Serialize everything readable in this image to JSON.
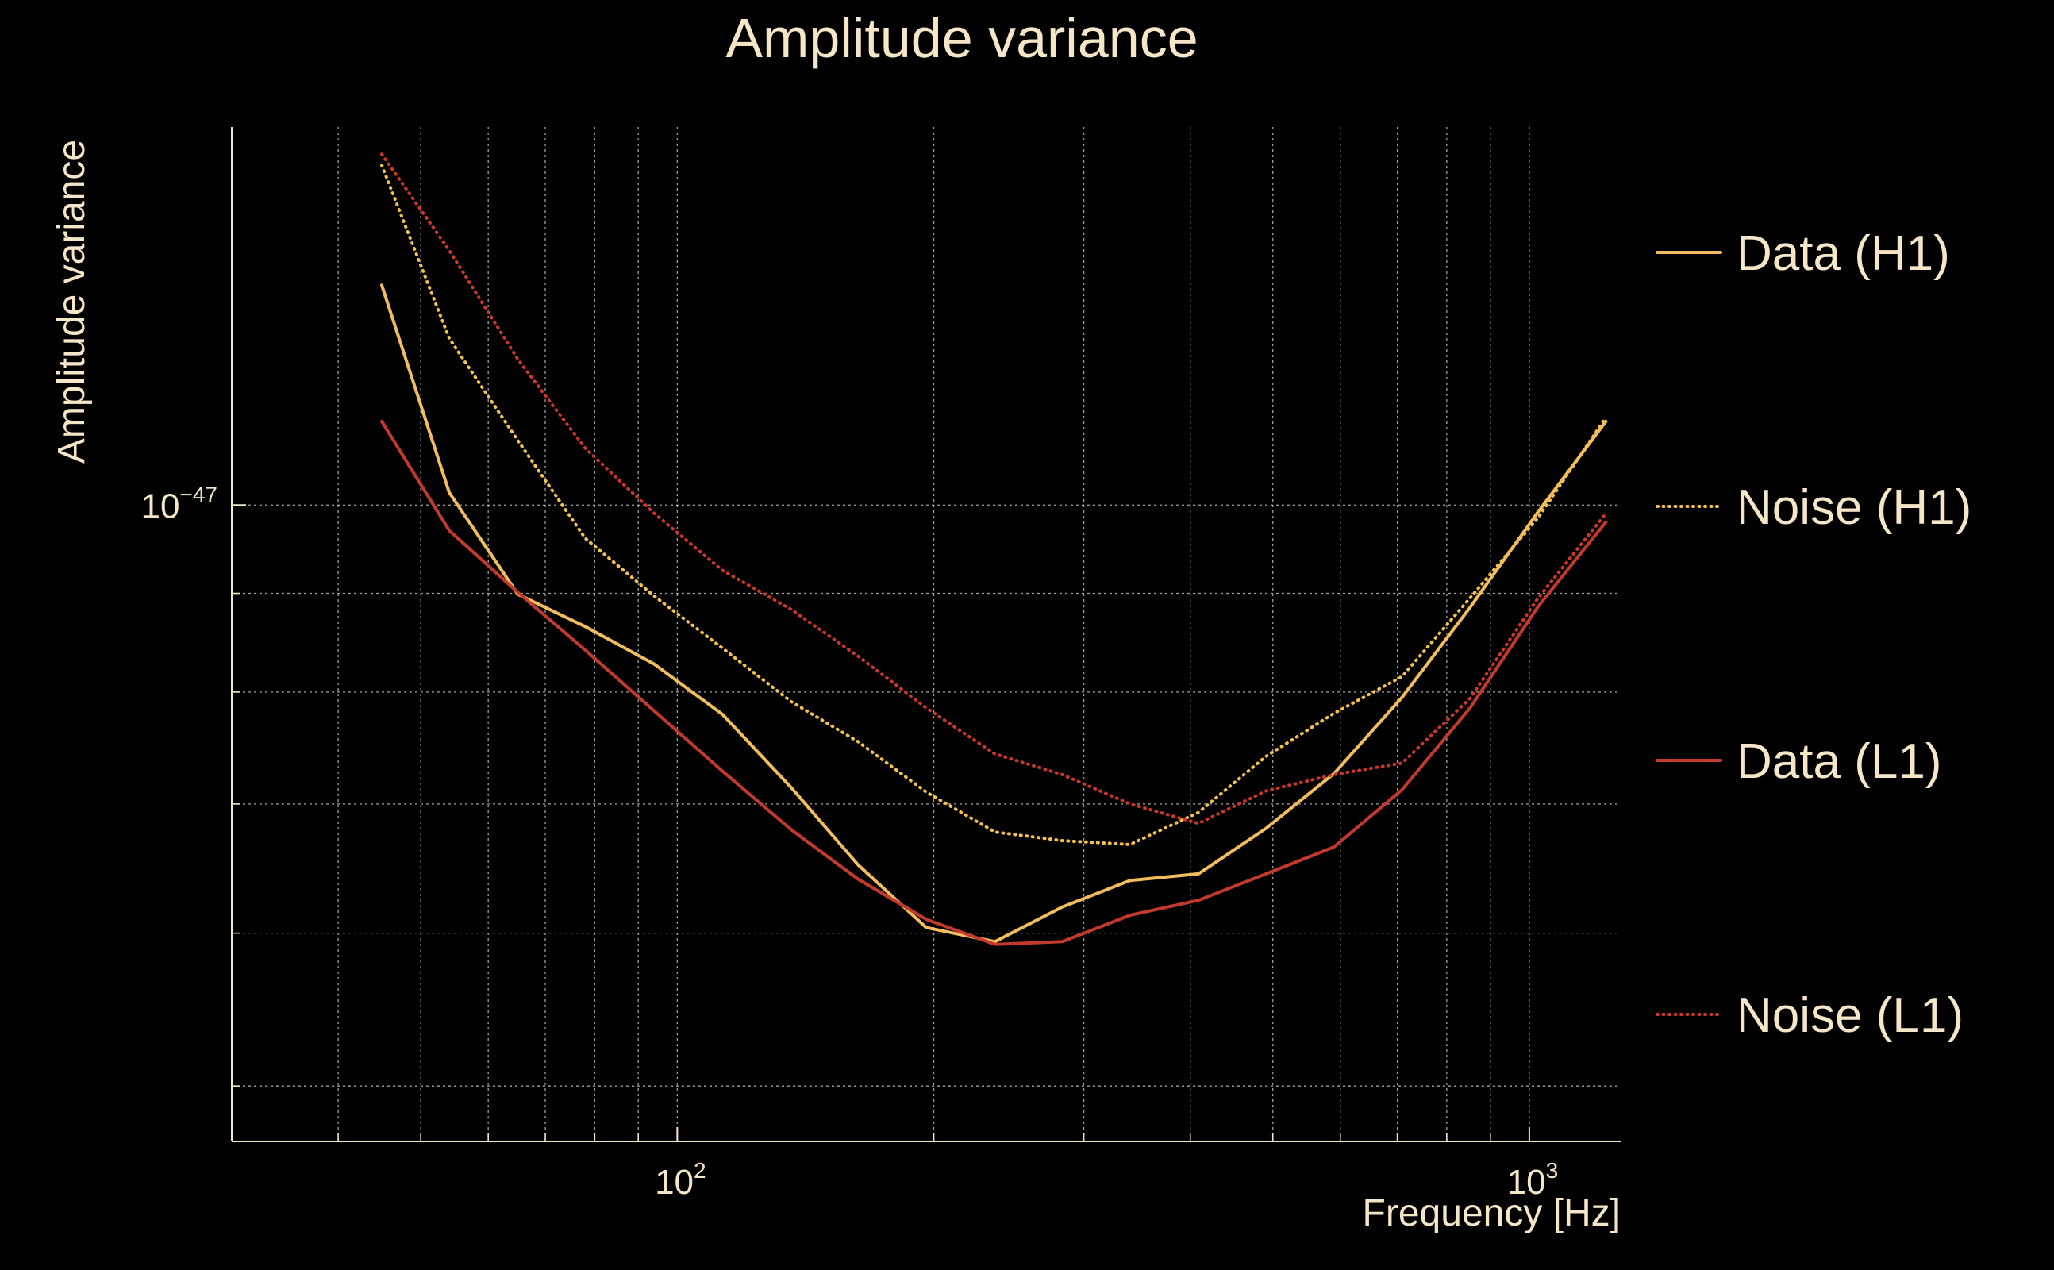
{
  "colors": {
    "background": "#000000",
    "text": "#f5e6c8",
    "grid": "#d8d8d8",
    "axis": "#f5e6c8",
    "data_h1": "#f2bd5c",
    "noise_h1": "#f2c14e",
    "data_l1": "#c23a2c",
    "noise_l1": "#c9382b"
  },
  "chart_data": {
    "type": "line",
    "title": "Amplitude variance",
    "xlabel": "Frequency [Hz]",
    "ylabel": "Amplitude variance",
    "xscale": "log",
    "yscale": "log",
    "xlim": [
      30,
      1280
    ],
    "ylim": [
      4.68e-48,
      1.57e-47
    ],
    "x_ticks": [
      {
        "value": 100,
        "base": "10",
        "exp": "2"
      },
      {
        "value": 1000,
        "base": "10",
        "exp": "3"
      }
    ],
    "y_ticks": [
      {
        "value": 1e-47,
        "base": "10",
        "exp": "−47"
      }
    ],
    "x_minor_ticks": [
      40,
      50,
      60,
      70,
      80,
      90,
      200,
      300,
      400,
      500,
      600,
      700,
      800,
      900
    ],
    "y_minor_ticks": [
      5e-48,
      6e-48,
      7e-48,
      8e-48,
      9e-48,
      2e-47
    ],
    "grid": true,
    "legend_position": "right",
    "x": [
      45,
      54,
      65,
      78,
      94,
      113,
      136,
      163,
      196,
      236,
      283,
      340,
      409,
      491,
      590,
      709,
      852,
      1024,
      1230
    ],
    "series": [
      {
        "name": "Data (H1)",
        "style": "solid",
        "color_key": "data_h1",
        "values": [
          1.3e-47,
          1.015e-47,
          8.99e-48,
          8.65e-48,
          8.27e-48,
          7.79e-48,
          7.14e-48,
          6.51e-48,
          6.04e-48,
          5.94e-48,
          6.19e-48,
          6.39e-48,
          6.44e-48,
          6.8e-48,
          7.26e-48,
          7.95e-48,
          8.85e-48,
          9.92e-48,
          1.105e-47
        ]
      },
      {
        "name": "Noise (H1)",
        "style": "dotted",
        "color_key": "noise_h1",
        "values": [
          1.5e-47,
          1.22e-47,
          1.08e-47,
          9.61e-48,
          8.97e-48,
          8.43e-48,
          7.91e-48,
          7.54e-48,
          7.1e-48,
          6.77e-48,
          6.7e-48,
          6.67e-48,
          6.93e-48,
          7.41e-48,
          7.8e-48,
          8.15e-48,
          8.95e-48,
          9.85e-48,
          1.11e-47
        ]
      },
      {
        "name": "Data (L1)",
        "style": "solid",
        "color_key": "data_l1",
        "values": [
          1.105e-47,
          9.7e-48,
          9.01e-48,
          8.41e-48,
          7.82e-48,
          7.28e-48,
          6.79e-48,
          6.4e-48,
          6.1e-48,
          5.92e-48,
          5.94e-48,
          6.13e-48,
          6.24e-48,
          6.44e-48,
          6.65e-48,
          7.12e-48,
          7.85e-48,
          8.86e-48,
          9.8e-48
        ]
      },
      {
        "name": "Noise (L1)",
        "style": "dotted",
        "color_key": "noise_l1",
        "values": [
          1.52e-47,
          1.355e-47,
          1.19e-47,
          1.07e-47,
          9.9e-48,
          9.25e-48,
          8.83e-48,
          8.35e-48,
          7.85e-48,
          7.43e-48,
          7.25e-48,
          7e-48,
          6.84e-48,
          7.11e-48,
          7.25e-48,
          7.35e-48,
          7.94e-48,
          8.95e-48,
          9.9e-48
        ]
      }
    ]
  }
}
